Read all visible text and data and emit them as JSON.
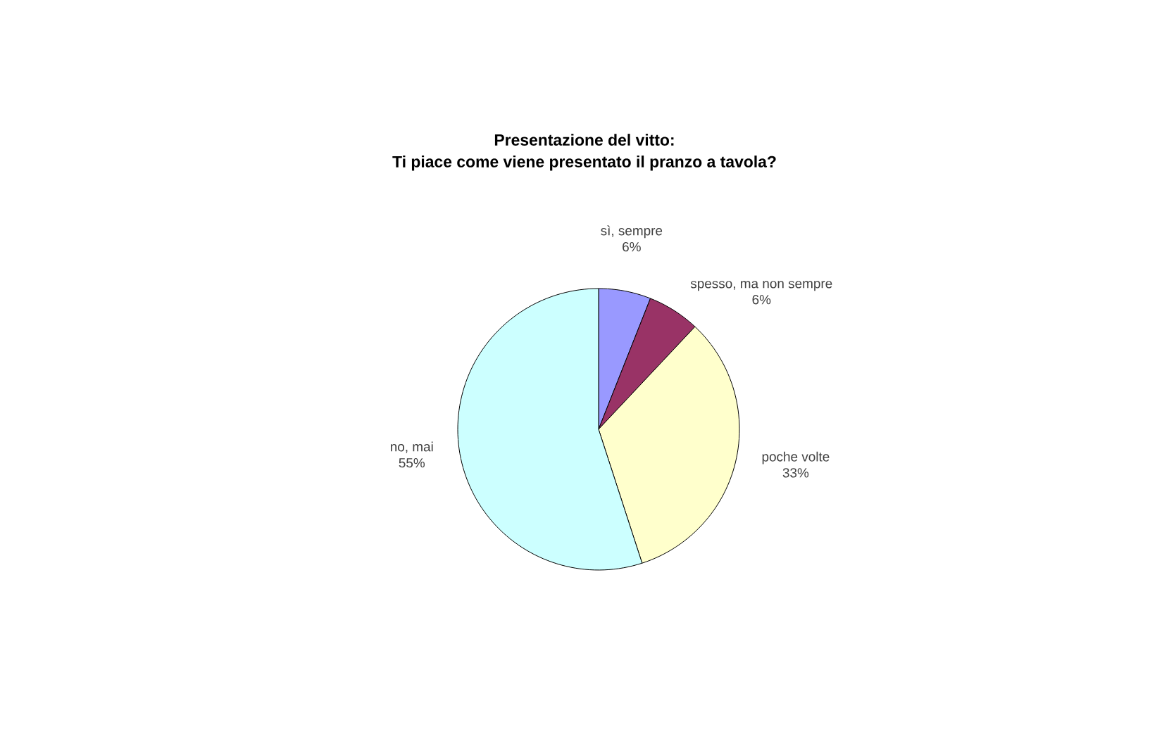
{
  "chart_data": {
    "type": "pie",
    "title": "Presentazione del vitto:",
    "subtitle": "Ti piace come viene presentato il pranzo a tavola?",
    "categories": [
      "sì, sempre",
      "spesso, ma non sempre",
      "poche volte",
      "no, mai"
    ],
    "values": [
      6,
      6,
      33,
      55
    ],
    "value_labels": [
      "6%",
      "6%",
      "33%",
      "55%"
    ],
    "colors": [
      "#9999ff",
      "#993366",
      "#ffffcc",
      "#ccffff"
    ],
    "legend": false
  }
}
